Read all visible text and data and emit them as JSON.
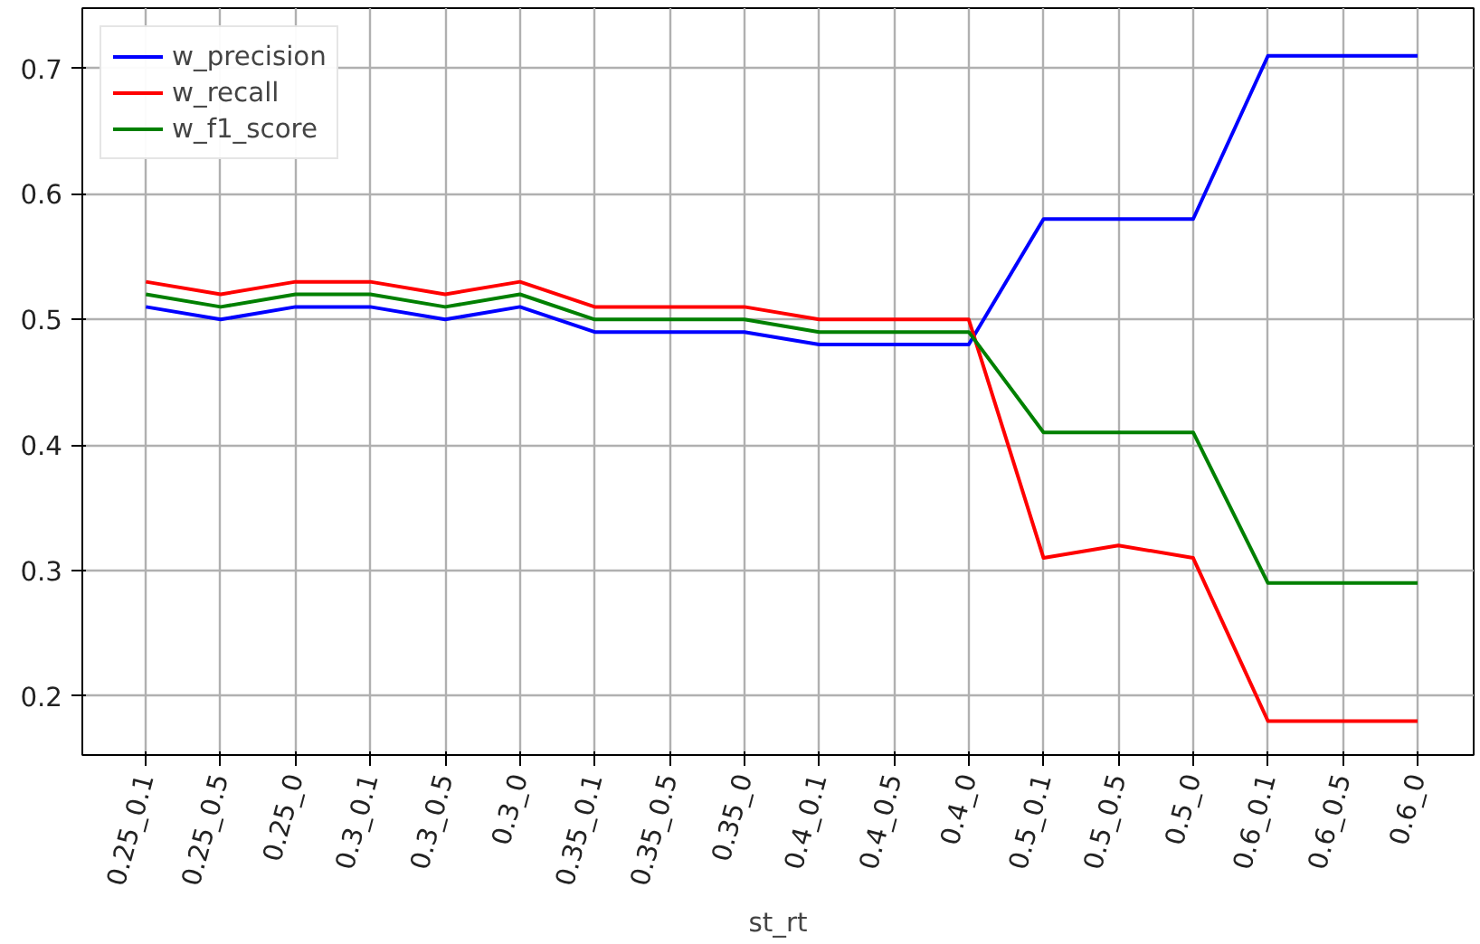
{
  "chart_data": {
    "type": "line",
    "xlabel": "st_rt",
    "categories": [
      "0.25_0.1",
      "0.25_0.5",
      "0.25_0",
      "0.3_0.1",
      "0.3_0.5",
      "0.3_0",
      "0.35_0.1",
      "0.35_0.5",
      "0.35_0",
      "0.4_0.1",
      "0.4_0.5",
      "0.4_0",
      "0.5_0.1",
      "0.5_0.5",
      "0.5_0",
      "0.6_0.1",
      "0.6_0.5",
      "0.6_0"
    ],
    "series": [
      {
        "name": "w_precision",
        "color": "#0000ff",
        "values": [
          0.51,
          0.5,
          0.51,
          0.51,
          0.5,
          0.51,
          0.49,
          0.49,
          0.49,
          0.48,
          0.48,
          0.48,
          0.58,
          0.58,
          0.58,
          0.71,
          0.71,
          0.71
        ]
      },
      {
        "name": "w_recall",
        "color": "#ff0000",
        "values": [
          0.53,
          0.52,
          0.53,
          0.53,
          0.52,
          0.53,
          0.51,
          0.51,
          0.51,
          0.5,
          0.5,
          0.5,
          0.31,
          0.32,
          0.31,
          0.18,
          0.18,
          0.18
        ]
      },
      {
        "name": "w_f1_score",
        "color": "#008000",
        "values": [
          0.52,
          0.51,
          0.52,
          0.52,
          0.51,
          0.52,
          0.5,
          0.5,
          0.5,
          0.49,
          0.49,
          0.49,
          0.41,
          0.41,
          0.41,
          0.29,
          0.29,
          0.29
        ]
      }
    ],
    "ylim": [
      0.153,
      0.748
    ],
    "yticks": [
      0.2,
      0.3,
      0.4,
      0.5,
      0.6,
      0.7
    ],
    "grid": true,
    "legend": "top left"
  }
}
